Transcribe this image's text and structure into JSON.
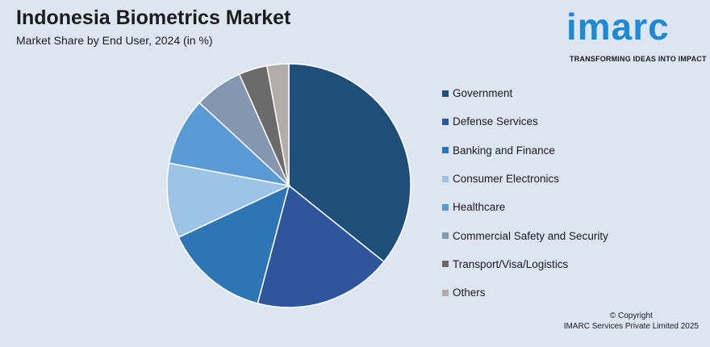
{
  "header": {
    "title": "Indonesia Biometrics Market",
    "subtitle": "Market Share by End User, 2024 (in %)"
  },
  "logo": {
    "brand": "imarc",
    "tagline": "TRANSFORMING IDEAS INTO IMPACT",
    "color": "#1e8ad6"
  },
  "chart_data": {
    "type": "pie",
    "start_angle_deg": 0,
    "direction": "clockwise",
    "legend_position": "right",
    "categories": [
      "Government",
      "Defense Services",
      "Banking and Finance",
      "Consumer Electronics",
      "Healthcare",
      "Commercial Safety and Security",
      "Transport/Visa/Logistics",
      "Others"
    ],
    "values": [
      36,
      18.5,
      14,
      10,
      9,
      6.5,
      3.8,
      2.9
    ],
    "colors": [
      "#1f4e79",
      "#2f559d",
      "#2e75b6",
      "#9dc3e6",
      "#5b9bd5",
      "#8497b0",
      "#6b6b6b",
      "#b3ada9"
    ]
  },
  "footer": {
    "copyright_line1": "© Copyright",
    "copyright_line2": "IMARC Services Private Limited 2025"
  }
}
